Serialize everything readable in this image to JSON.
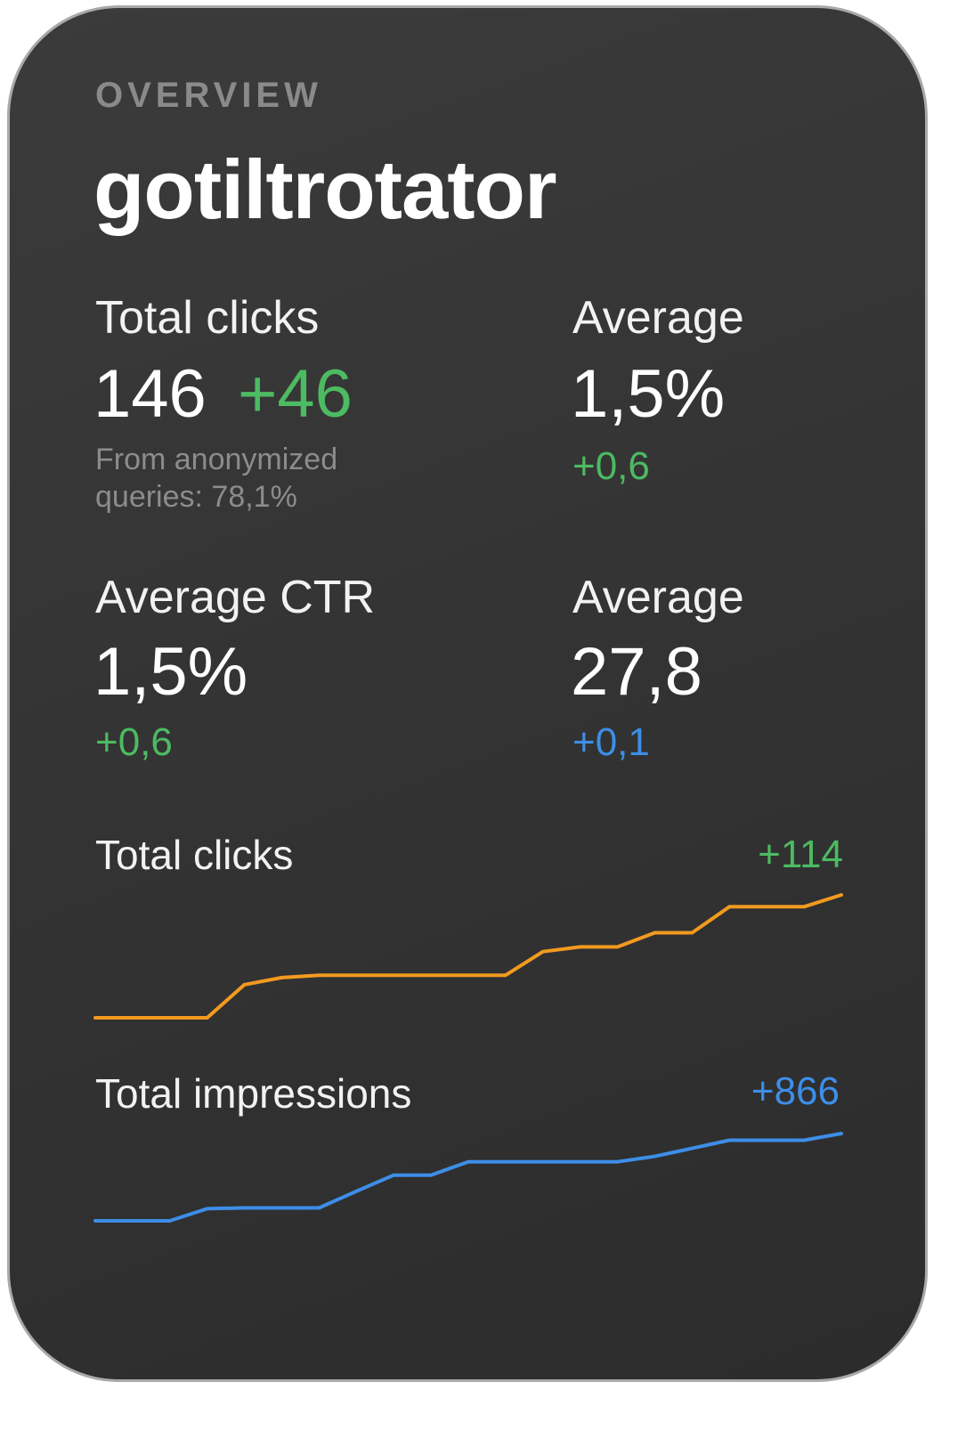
{
  "overview_label": "OVERVIEW",
  "site_name": "gotiltrotator",
  "metrics": {
    "total_clicks": {
      "label": "Total clicks",
      "value": "146",
      "delta": "+46",
      "note": "From anonymized queries: 78,1%"
    },
    "average_top_right": {
      "label": "Average",
      "value": "1,5%",
      "delta": "+0,6"
    },
    "average_ctr": {
      "label": "Average CTR",
      "value": "1,5%",
      "delta": "+0,6"
    },
    "average_bottom_right": {
      "label": "Average",
      "value": "27,8",
      "delta": "+0,1"
    }
  },
  "charts": {
    "clicks": {
      "title": "Total clicks",
      "delta": "+114"
    },
    "impressions": {
      "title": "Total impressions",
      "delta": "+866"
    }
  },
  "colors": {
    "background": "#333333",
    "positive": "#4cbb62",
    "neutral": "#3d8ee8",
    "clicks_line": "#f29a1f",
    "impressions_line": "#3d8ee8"
  },
  "chart_data": [
    {
      "type": "line",
      "title": "Total clicks",
      "x": [
        0,
        1,
        2,
        3,
        4,
        5,
        6,
        7,
        8,
        9,
        10,
        11,
        12,
        13,
        14,
        15,
        16,
        17
      ],
      "series": [
        {
          "values": [
            32,
            32,
            32,
            32,
            46,
            49,
            50,
            50,
            50,
            50,
            50,
            50,
            60,
            62,
            62,
            68,
            68,
            79
          ]
        }
      ],
      "extra": [
        79,
        79,
        84
      ],
      "grid": false,
      "legend": "none"
    },
    {
      "type": "line",
      "title": "Total impressions",
      "series": [
        {
          "values": [
            200,
            200,
            200,
            245,
            248,
            248,
            248,
            310,
            370,
            370,
            420,
            420,
            420,
            420,
            420,
            440,
            470,
            500,
            500,
            500,
            525
          ]
        }
      ],
      "grid": false,
      "legend": "none"
    }
  ]
}
